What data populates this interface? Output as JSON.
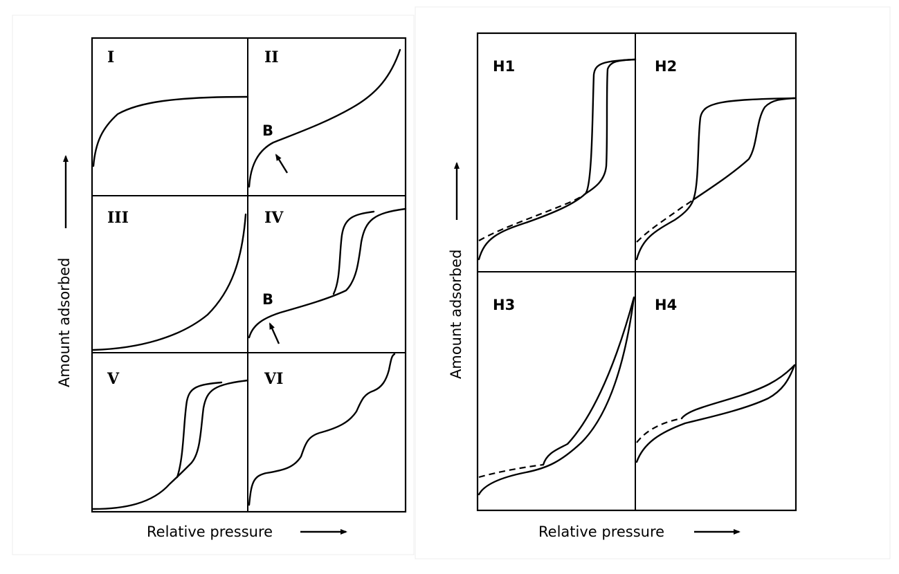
{
  "left_figure": {
    "panels": [
      {
        "label": "I"
      },
      {
        "label": "II",
        "point_label": "B"
      },
      {
        "label": "III"
      },
      {
        "label": "IV",
        "point_label": "B"
      },
      {
        "label": "V"
      },
      {
        "label": "VI"
      }
    ],
    "xlabel": "Relative pressure",
    "ylabel": "Amount adsorbed"
  },
  "right_figure": {
    "panels": [
      {
        "label": "H1"
      },
      {
        "label": "H2"
      },
      {
        "label": "H3"
      },
      {
        "label": "H4"
      }
    ],
    "xlabel": "Relative pressure",
    "ylabel": "Amount adsorbed"
  }
}
